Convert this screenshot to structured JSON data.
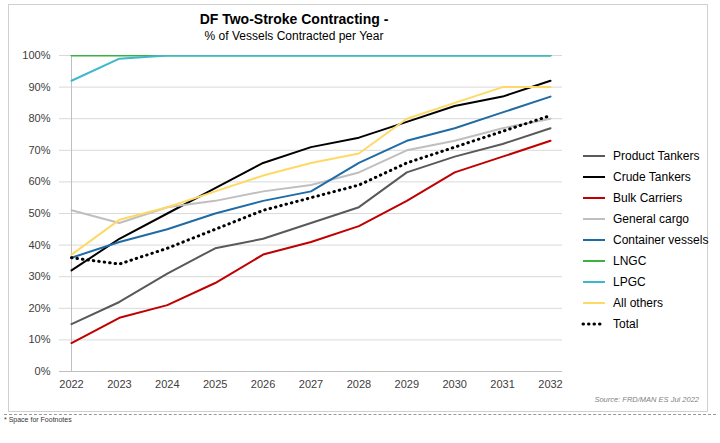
{
  "chart_data": {
    "type": "line",
    "title": "DF Two-Stroke Contracting -",
    "subtitle": "% of Vessels Contracted per Year",
    "source": "Source: FRD/MAN ES Jul 2022",
    "footnote": "* Space for Footnotes",
    "x": [
      2022,
      2023,
      2024,
      2025,
      2026,
      2027,
      2028,
      2029,
      2030,
      2031,
      2032
    ],
    "xlim": [
      2022,
      2032
    ],
    "xticks": [
      2022,
      2023,
      2024,
      2025,
      2026,
      2027,
      2028,
      2029,
      2030,
      2031,
      2032
    ],
    "ylim": [
      0,
      100
    ],
    "yticks": [
      {
        "value": 0,
        "label": "0%"
      },
      {
        "value": 10,
        "label": "10%"
      },
      {
        "value": 20,
        "label": "20%"
      },
      {
        "value": 30,
        "label": "30%"
      },
      {
        "value": 40,
        "label": "40%"
      },
      {
        "value": 50,
        "label": "50%"
      },
      {
        "value": 60,
        "label": "60%"
      },
      {
        "value": 70,
        "label": "70%"
      },
      {
        "value": 80,
        "label": "80%"
      },
      {
        "value": 90,
        "label": "90%"
      },
      {
        "value": 100,
        "label": "100%"
      }
    ],
    "grid": true,
    "legend": "right",
    "series": [
      {
        "name": "Product Tankers",
        "color": "#595959",
        "line_style": "solid",
        "values": [
          15,
          22,
          31,
          39,
          42,
          47,
          52,
          63,
          68,
          72,
          77
        ]
      },
      {
        "name": "Crude Tankers",
        "color": "#000000",
        "line_style": "solid",
        "values": [
          32,
          42,
          50,
          58,
          66,
          71,
          74,
          79,
          84,
          87,
          92
        ]
      },
      {
        "name": "Bulk Carriers",
        "color": "#c00000",
        "line_style": "solid",
        "values": [
          9,
          17,
          21,
          28,
          37,
          41,
          46,
          54,
          63,
          68,
          73
        ]
      },
      {
        "name": "General cargo",
        "color": "#bfbfbf",
        "line_style": "solid",
        "values": [
          51,
          47,
          52,
          54,
          57,
          59,
          63,
          70,
          73,
          77,
          80
        ]
      },
      {
        "name": "Container vessels",
        "color": "#1f6ba5",
        "line_style": "solid",
        "values": [
          36,
          41,
          45,
          50,
          54,
          57,
          66,
          73,
          77,
          82,
          87
        ]
      },
      {
        "name": "LNGC",
        "color": "#3cb043",
        "line_style": "solid",
        "values": [
          100,
          100,
          100,
          100,
          100,
          100,
          100,
          100,
          100,
          100,
          100
        ]
      },
      {
        "name": "LPGC",
        "color": "#3fb8cc",
        "line_style": "solid",
        "values": [
          92,
          99,
          100,
          100,
          100,
          100,
          100,
          100,
          100,
          100,
          100
        ]
      },
      {
        "name": "All others",
        "color": "#ffd966",
        "line_style": "solid",
        "values": [
          37,
          48,
          52,
          57,
          62,
          66,
          69,
          80,
          85,
          90,
          90
        ]
      },
      {
        "name": "Total",
        "color": "#000000",
        "line_style": "dotted",
        "values": [
          36,
          34,
          39,
          45,
          51,
          55,
          59,
          66,
          71,
          76,
          81
        ]
      }
    ]
  }
}
